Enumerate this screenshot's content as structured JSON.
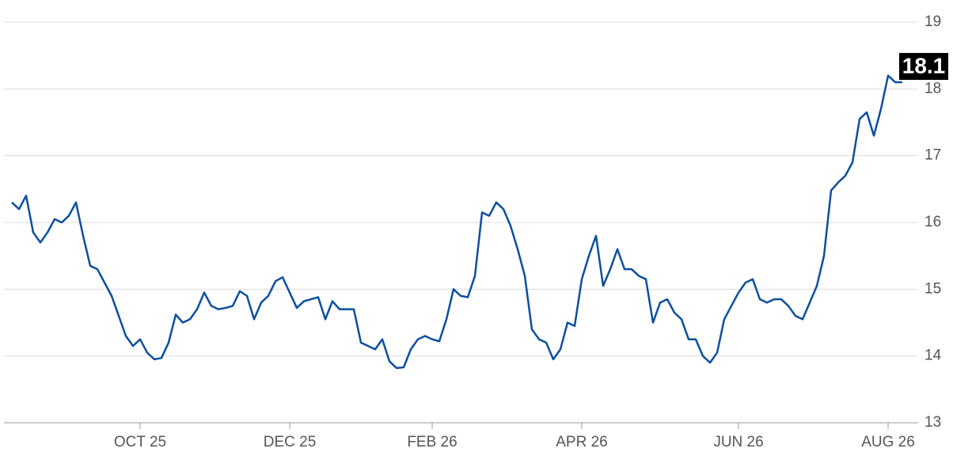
{
  "chart_data": {
    "type": "line",
    "categories": [
      null,
      null,
      null,
      null,
      null,
      null,
      null,
      null,
      null,
      null,
      null,
      null,
      null,
      null,
      null,
      null,
      null,
      null,
      "OCT 25",
      null,
      null,
      null,
      null,
      null,
      null,
      null,
      null,
      null,
      null,
      null,
      null,
      null,
      null,
      null,
      null,
      null,
      null,
      null,
      null,
      "DEC 25",
      null,
      null,
      null,
      null,
      null,
      null,
      null,
      null,
      null,
      null,
      null,
      null,
      null,
      null,
      null,
      null,
      null,
      null,
      null,
      "FEB 26",
      null,
      null,
      null,
      null,
      null,
      null,
      null,
      null,
      null,
      null,
      null,
      null,
      null,
      null,
      null,
      null,
      null,
      null,
      null,
      null,
      "APR 26",
      null,
      null,
      null,
      null,
      null,
      null,
      null,
      null,
      null,
      null,
      null,
      null,
      null,
      null,
      null,
      null,
      null,
      null,
      null,
      null,
      null,
      "JUN 26",
      null,
      null,
      null,
      null,
      null,
      null,
      null,
      null,
      null,
      null,
      null,
      null,
      null,
      null,
      null,
      null,
      null,
      null,
      null,
      null,
      "AUG 26",
      null,
      null
    ],
    "series": [
      {
        "color": "#0b4f9e",
        "values": [
          16.3,
          16.2,
          16.4,
          15.85,
          15.7,
          15.85,
          16.05,
          16.0,
          16.1,
          16.3,
          15.8,
          15.35,
          15.3,
          15.1,
          14.9,
          14.6,
          14.3,
          14.15,
          14.25,
          14.05,
          13.95,
          13.97,
          14.2,
          14.62,
          14.5,
          14.55,
          14.7,
          14.95,
          14.75,
          14.7,
          14.72,
          14.75,
          14.97,
          14.9,
          14.55,
          14.8,
          14.9,
          15.12,
          15.18,
          14.95,
          14.72,
          14.82,
          14.85,
          14.88,
          14.55,
          14.82,
          14.7,
          14.7,
          14.7,
          14.2,
          14.15,
          14.1,
          14.25,
          13.92,
          13.82,
          13.83,
          14.1,
          14.25,
          14.3,
          14.25,
          14.22,
          14.55,
          15.0,
          14.9,
          14.88,
          15.2,
          16.15,
          16.1,
          16.3,
          16.2,
          15.95,
          15.6,
          15.2,
          14.4,
          14.25,
          14.2,
          13.95,
          14.1,
          14.5,
          14.45,
          15.15,
          15.5,
          15.8,
          15.05,
          15.3,
          15.6,
          15.3,
          15.3,
          15.2,
          15.15,
          14.5,
          14.8,
          14.85,
          14.65,
          14.55,
          14.25,
          14.25,
          14.0,
          13.9,
          14.05,
          14.55,
          14.75,
          14.95,
          15.1,
          15.15,
          14.85,
          14.8,
          14.85,
          14.85,
          14.75,
          14.6,
          14.55,
          14.8,
          15.05,
          15.5,
          16.48,
          16.6,
          16.7,
          16.9,
          17.55,
          17.65,
          17.3,
          17.7,
          18.2,
          18.1,
          18.1
        ],
        "value_labels": [
          null,
          null,
          null,
          null,
          null,
          null,
          null,
          null,
          null,
          null,
          null,
          null,
          null,
          null,
          null,
          null,
          null,
          null,
          null,
          null,
          null,
          null,
          null,
          null,
          null,
          null,
          null,
          null,
          null,
          null,
          null,
          null,
          null,
          null,
          null,
          null,
          null,
          null,
          null,
          null,
          null,
          null,
          null,
          null,
          null,
          null,
          null,
          null,
          null,
          null,
          null,
          null,
          null,
          null,
          null,
          null,
          null,
          null,
          null,
          null,
          null,
          null,
          null,
          null,
          null,
          null,
          null,
          null,
          null,
          null,
          null,
          null,
          null,
          null,
          null,
          null,
          null,
          null,
          null,
          null,
          null,
          null,
          null,
          null,
          null,
          null,
          null,
          null,
          null,
          null,
          null,
          null,
          null,
          null,
          null,
          null,
          null,
          null,
          null,
          null,
          null,
          null,
          null,
          null,
          null,
          null,
          null,
          null,
          null,
          null,
          null,
          null,
          null,
          null,
          null,
          null,
          null,
          null,
          null,
          null,
          null,
          null,
          null,
          null,
          null,
          "18.1"
        ]
      }
    ],
    "ylim": [
      13,
      19
    ],
    "yticks": [
      13,
      14,
      15,
      16,
      17,
      18,
      19
    ],
    "grid": true
  }
}
